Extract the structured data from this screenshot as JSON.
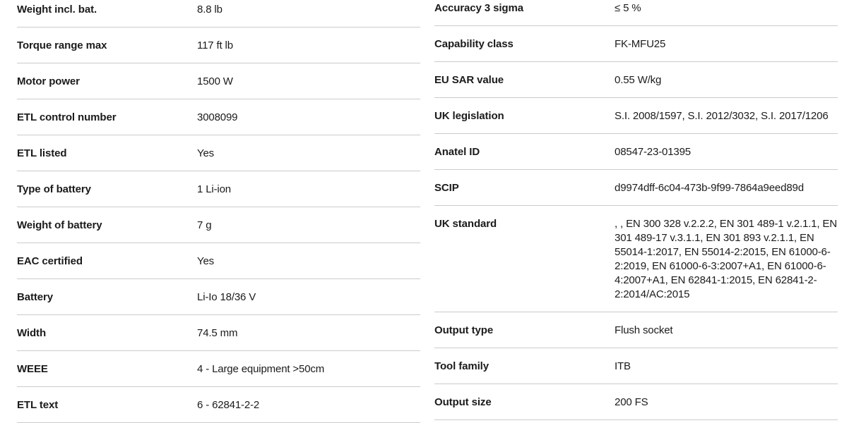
{
  "page": {
    "background_color": "#ffffff",
    "text_color": "#1b1b1b",
    "divider_color": "#cbcbcb"
  },
  "left_table": {
    "rows": [
      {
        "label": "Weight incl. bat.",
        "value": "8.8 lb"
      },
      {
        "label": "Torque range max",
        "value": "117 ft lb"
      },
      {
        "label": "Motor power",
        "value": "1500 W"
      },
      {
        "label": "ETL control number",
        "value": "3008099"
      },
      {
        "label": "ETL listed",
        "value": "Yes"
      },
      {
        "label": "Type of battery",
        "value": "1 Li-ion"
      },
      {
        "label": "Weight of battery",
        "value": "7 g"
      },
      {
        "label": "EAC certified",
        "value": "Yes"
      },
      {
        "label": "Battery",
        "value": "Li-Io 18/36 V"
      },
      {
        "label": "Width",
        "value": "74.5 mm"
      },
      {
        "label": "WEEE",
        "value": "4 - Large equipment >50cm"
      },
      {
        "label": "ETL text",
        "value": "6 - 62841-2-2"
      }
    ]
  },
  "right_table": {
    "rows": [
      {
        "label": "Accuracy 3 sigma",
        "value": "≤ 5 %"
      },
      {
        "label": "Capability class",
        "value": "FK-MFU25"
      },
      {
        "label": "EU SAR value",
        "value": "0.55 W/kg"
      },
      {
        "label": "UK legislation",
        "value": "S.I. 2008/1597, S.I. 2012/3032, S.I. 2017/1206"
      },
      {
        "label": "Anatel ID",
        "value": "08547-23-01395"
      },
      {
        "label": "SCIP",
        "value": "d9974dff-6c04-473b-9f99-7864a9eed89d"
      },
      {
        "label": "UK standard",
        "value": ", , EN 300 328 v.2.2.2, EN 301 489-1 v.2.1.1, EN 301 489-17 v.3.1.1, EN 301 893 v.2.1.1, EN 55014-1:2017, EN 55014-2:2015, EN 61000-6-2:2019, EN 61000-6-3:2007+A1, EN 61000-6-4:2007+A1, EN 62841-1:2015, EN 62841-2-2:2014/AC:2015"
      },
      {
        "label": "Output type",
        "value": "Flush socket"
      },
      {
        "label": "Tool family",
        "value": "ITB"
      },
      {
        "label": "Output size",
        "value": "200 FS"
      }
    ]
  }
}
